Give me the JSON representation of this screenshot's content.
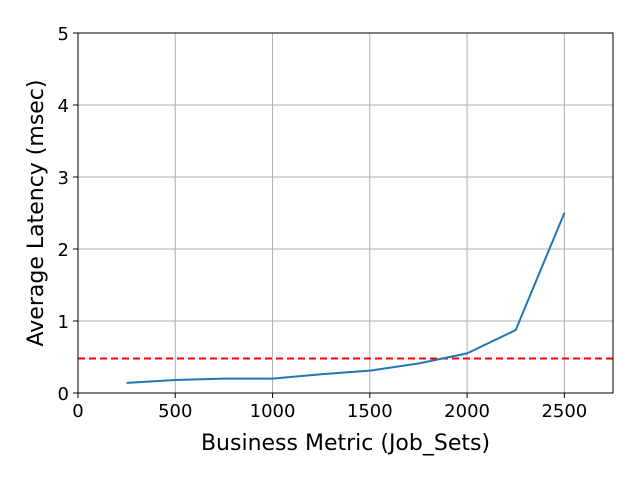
{
  "chart_data": {
    "type": "line",
    "title": "",
    "xlabel": "Business Metric (Job_Sets)",
    "ylabel": "Average Latency (msec)",
    "xlim": [
      0,
      2750
    ],
    "ylim": [
      0,
      5
    ],
    "xticks": [
      0,
      500,
      1000,
      1500,
      2000,
      2500
    ],
    "yticks": [
      0,
      1,
      2,
      3,
      4,
      5
    ],
    "grid": true,
    "series": [
      {
        "x": [
          250,
          500,
          750,
          1000,
          1250,
          1500,
          1750,
          2000,
          2250,
          2500
        ],
        "y": [
          0.14,
          0.18,
          0.2,
          0.2,
          0.26,
          0.31,
          0.41,
          0.55,
          0.875,
          2.5
        ],
        "color": "#1f77b4"
      }
    ],
    "reference_line": {
      "y": 0.48,
      "color": "#ff0000",
      "style": "dashed"
    }
  }
}
